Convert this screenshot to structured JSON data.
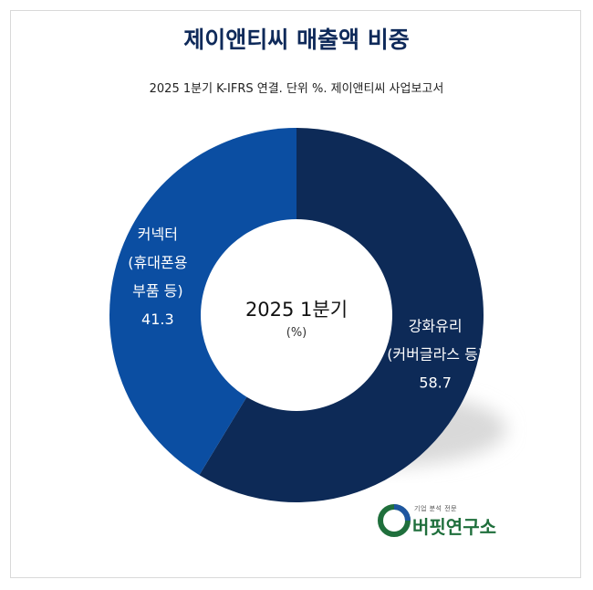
{
  "title": "제이앤티씨 매출액 비중",
  "subtitle": "2025 1분기 K-IFRS 연결. 단위 %. 제이앤티씨 사업보고서",
  "center": {
    "main": "2025 1분기",
    "sub": "(%)"
  },
  "logo": {
    "tagline": "기업 분석 전문",
    "name": "버핏연구소"
  },
  "chart_data": {
    "type": "pie",
    "donut": true,
    "start_angle_deg": 0,
    "direction": "clockwise",
    "slices": [
      {
        "label_lines": [
          "강화유리",
          "(커버글라스 등)"
        ],
        "value": 58.7,
        "value_label": "58.7",
        "color": "#0d2a57"
      },
      {
        "label_lines": [
          "커넥터",
          "(휴대폰용",
          "부품 등)"
        ],
        "value": 41.3,
        "value_label": "41.3",
        "color": "#0b4ea2"
      }
    ]
  },
  "colors": {
    "shadow": "#d9d9d9",
    "logo_green": "#1f6f3c",
    "logo_blue": "#1e56a0"
  }
}
